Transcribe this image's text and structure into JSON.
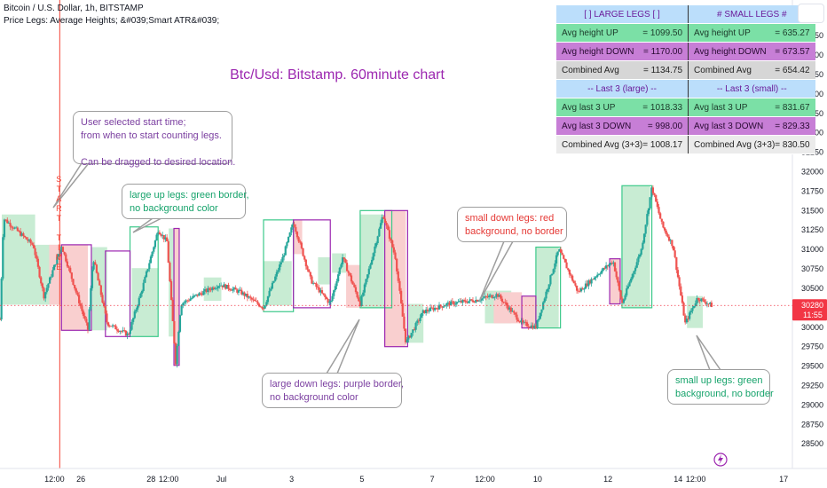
{
  "header": {
    "symbol_line": "Bitcoin / U.S. Dollar, 1h, BITSTAMP",
    "indicator_line": "Price Legs: Average Heights; &#039;Smart ATR&#039;"
  },
  "stats_table": {
    "rows": [
      {
        "style": "head",
        "left": {
          "label": "[ ] LARGE LEGS [ ]",
          "value": ""
        },
        "right": {
          "label": "# SMALL LEGS #",
          "value": ""
        }
      },
      {
        "style": "up",
        "left": {
          "label": "Avg height UP",
          "value": "= 1099.50"
        },
        "right": {
          "label": "Avg height UP",
          "value": "= 635.27"
        }
      },
      {
        "style": "down",
        "left": {
          "label": "Avg height DOWN",
          "value": "= 1170.00"
        },
        "right": {
          "label": "Avg height DOWN",
          "value": "= 673.57"
        }
      },
      {
        "style": "comb",
        "left": {
          "label": "Combined Avg",
          "value": "= 1134.75"
        },
        "right": {
          "label": "Combined Avg",
          "value": "= 654.42"
        }
      },
      {
        "style": "head",
        "left": {
          "label": "-- Last 3 (large) --",
          "value": ""
        },
        "right": {
          "label": "-- Last 3 (small) --",
          "value": ""
        }
      },
      {
        "style": "up",
        "left": {
          "label": "Avg last 3 UP",
          "value": "= 1018.33"
        },
        "right": {
          "label": "Avg last 3 UP",
          "value": "= 831.67"
        }
      },
      {
        "style": "down",
        "left": {
          "label": "Avg last 3 DOWN",
          "value": "= 998.00"
        },
        "right": {
          "label": "Avg last 3 DOWN",
          "value": "= 829.33"
        }
      },
      {
        "style": "comb2",
        "left": {
          "label": "Combined Avg (3+3)",
          "value": "= 1008.17"
        },
        "right": {
          "label": "Combined Avg (3+3)",
          "value": "= 830.50"
        }
      }
    ]
  },
  "chart_data": {
    "type": "candlestick",
    "title": "Btc/Usd: Bitstamp. 60minute chart",
    "y_axis": {
      "position": "right",
      "ticks": [
        28500,
        28750,
        29000,
        29250,
        29500,
        29750,
        30000,
        30250,
        30500,
        30750,
        31000,
        31250,
        31500,
        31750,
        32000,
        32250,
        32500,
        32750,
        33000,
        33250,
        33500,
        33750
      ],
      "range": [
        28400,
        33900
      ]
    },
    "x_axis": {
      "ticks": [
        {
          "label": "12:00",
          "t": 0.0
        },
        {
          "label": "26",
          "t": 0.75
        },
        {
          "label": "28",
          "t": 2.75
        },
        {
          "label": "12:00",
          "t": 3.25
        },
        {
          "label": "Jul",
          "t": 4.75
        },
        {
          "label": "3",
          "t": 6.75
        },
        {
          "label": "5",
          "t": 8.75
        },
        {
          "label": "7",
          "t": 10.75
        },
        {
          "label": "12:00",
          "t": 12.25
        },
        {
          "label": "10",
          "t": 13.75
        },
        {
          "label": "12",
          "t": 15.75
        },
        {
          "label": "14",
          "t": 17.75
        },
        {
          "label": "12:00",
          "t": 18.25
        },
        {
          "label": "17",
          "t": 20.75
        }
      ],
      "range": [
        -1.55,
        21.0
      ]
    },
    "last_price": {
      "value": "30280",
      "value_num": 30280,
      "countdown": "11:55"
    },
    "start_time": {
      "t": 0.15,
      "label": "START TIME"
    },
    "legs": [
      {
        "kind": "small-up",
        "t0": -1.5,
        "t1": -0.55,
        "low": 30290,
        "high": 31450
      },
      {
        "kind": "small-up",
        "t0": -0.6,
        "t1": 0.55,
        "low": 30290,
        "high": 31060
      },
      {
        "kind": "small-down",
        "t0": -0.15,
        "t1": 0.55,
        "low": 30290,
        "high": 31060
      },
      {
        "kind": "large-down",
        "t0": 0.2,
        "t1": 1.05,
        "low": 29960,
        "high": 31060
      },
      {
        "kind": "small-down",
        "t0": 0.2,
        "t1": 0.95,
        "low": 29960,
        "high": 31060
      },
      {
        "kind": "small-up",
        "t0": 1.05,
        "t1": 1.5,
        "low": 29960,
        "high": 31030
      },
      {
        "kind": "large-down",
        "t0": 1.45,
        "t1": 2.15,
        "low": 29880,
        "high": 30980
      },
      {
        "kind": "large-up",
        "t0": 2.15,
        "t1": 2.95,
        "low": 29880,
        "high": 31290
      },
      {
        "kind": "small-up",
        "t0": 2.2,
        "t1": 2.95,
        "low": 29880,
        "high": 30760
      },
      {
        "kind": "small-up",
        "t0": 3.25,
        "t1": 3.4,
        "low": 29880,
        "high": 31270
      },
      {
        "kind": "small-down",
        "t0": 3.4,
        "t1": 3.55,
        "low": 29510,
        "high": 31270
      },
      {
        "kind": "large-down",
        "t0": 3.4,
        "t1": 3.55,
        "low": 29510,
        "high": 31270
      },
      {
        "kind": "small-up",
        "t0": 4.25,
        "t1": 4.75,
        "low": 30340,
        "high": 30640
      },
      {
        "kind": "large-up",
        "t0": 5.95,
        "t1": 6.8,
        "low": 30200,
        "high": 31380
      },
      {
        "kind": "small-up",
        "t0": 5.95,
        "t1": 6.75,
        "low": 30280,
        "high": 30850
      },
      {
        "kind": "small-down",
        "t0": 6.8,
        "t1": 7.05,
        "low": 30940,
        "high": 31380
      },
      {
        "kind": "large-down",
        "t0": 6.8,
        "t1": 7.85,
        "low": 30250,
        "high": 31380
      },
      {
        "kind": "small-up",
        "t0": 7.5,
        "t1": 7.85,
        "low": 30550,
        "high": 30900
      },
      {
        "kind": "small-up",
        "t0": 7.9,
        "t1": 8.3,
        "low": 30700,
        "high": 30950
      },
      {
        "kind": "small-down",
        "t0": 8.3,
        "t1": 8.7,
        "low": 30250,
        "high": 30800
      },
      {
        "kind": "small-up",
        "t0": 8.7,
        "t1": 9.4,
        "low": 30250,
        "high": 31450
      },
      {
        "kind": "large-up",
        "t0": 8.7,
        "t1": 9.6,
        "low": 30250,
        "high": 31500
      },
      {
        "kind": "small-down",
        "t0": 9.4,
        "t1": 10.0,
        "low": 29750,
        "high": 31500
      },
      {
        "kind": "large-down",
        "t0": 9.4,
        "t1": 10.05,
        "low": 29750,
        "high": 31500
      },
      {
        "kind": "small-up",
        "t0": 10.05,
        "t1": 10.5,
        "low": 29800,
        "high": 30300
      },
      {
        "kind": "small-up",
        "t0": 12.25,
        "t1": 13.0,
        "low": 30050,
        "high": 30470
      },
      {
        "kind": "small-down",
        "t0": 12.5,
        "t1": 13.3,
        "low": 30050,
        "high": 30450
      },
      {
        "kind": "small-down",
        "t0": 13.3,
        "t1": 13.7,
        "low": 29990,
        "high": 30400
      },
      {
        "kind": "large-down",
        "t0": 13.3,
        "t1": 13.7,
        "low": 29990,
        "high": 30400
      },
      {
        "kind": "small-up",
        "t0": 13.7,
        "t1": 14.35,
        "low": 29990,
        "high": 31030
      },
      {
        "kind": "large-up",
        "t0": 13.7,
        "t1": 14.4,
        "low": 29990,
        "high": 31030
      },
      {
        "kind": "small-down",
        "t0": 15.8,
        "t1": 16.1,
        "low": 30300,
        "high": 30880
      },
      {
        "kind": "large-down",
        "t0": 15.8,
        "t1": 16.1,
        "low": 30300,
        "high": 30880
      },
      {
        "kind": "small-up",
        "t0": 16.15,
        "t1": 16.95,
        "low": 30250,
        "high": 31820
      },
      {
        "kind": "large-up",
        "t0": 16.15,
        "t1": 17.0,
        "low": 30250,
        "high": 31820
      },
      {
        "kind": "small-up",
        "t0": 18.0,
        "t1": 18.45,
        "low": 29990,
        "high": 30400
      }
    ],
    "annotations": [
      {
        "id": "start-time",
        "lines": [
          "User selected start time;",
          "from when to start counting legs.",
          "",
          "Can be dragged to desired location."
        ],
        "color": "#7b3fa0"
      },
      {
        "id": "large-up",
        "lines": [
          "large up legs: green border,",
          "no background color"
        ],
        "color": "#16a36b"
      },
      {
        "id": "small-down",
        "lines": [
          "small down legs: red",
          "background, no border"
        ],
        "color": "#e53935"
      },
      {
        "id": "large-down",
        "lines": [
          "large down legs: purple border,",
          "no background color"
        ],
        "color": "#7b3fa0"
      },
      {
        "id": "small-up",
        "lines": [
          "small up legs: green",
          "background, no border"
        ],
        "color": "#16a36b"
      }
    ],
    "colors": {
      "candle_up": "#26a69a",
      "candle_down": "#ef5350",
      "large_up_border": "#3cc98a",
      "large_down_border": "#9c27b0",
      "small_up_fill": "#c8ecd3",
      "small_down_fill": "#f9cfcf",
      "start_line": "#f44336",
      "last_price": "#f23645",
      "title": "#9c27b0"
    },
    "grid": false,
    "legend": "none"
  }
}
